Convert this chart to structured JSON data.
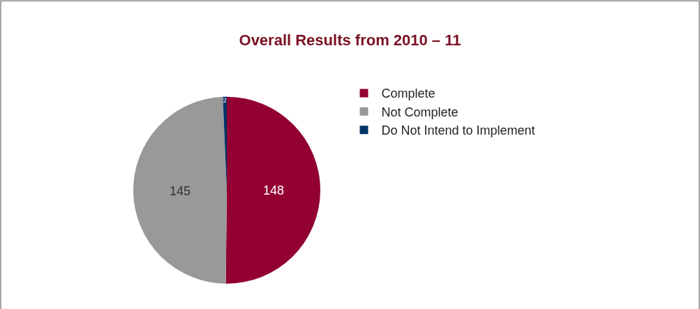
{
  "chart_data": {
    "type": "pie",
    "title": "Overall Results from 2010 – 11",
    "categories": [
      "Complete",
      "Not Complete",
      "Do Not Intend to Implement"
    ],
    "values": [
      148,
      145,
      2
    ],
    "colors": [
      "#930033",
      "#999999",
      "#003366"
    ],
    "data_labels": true,
    "legend": "right"
  }
}
